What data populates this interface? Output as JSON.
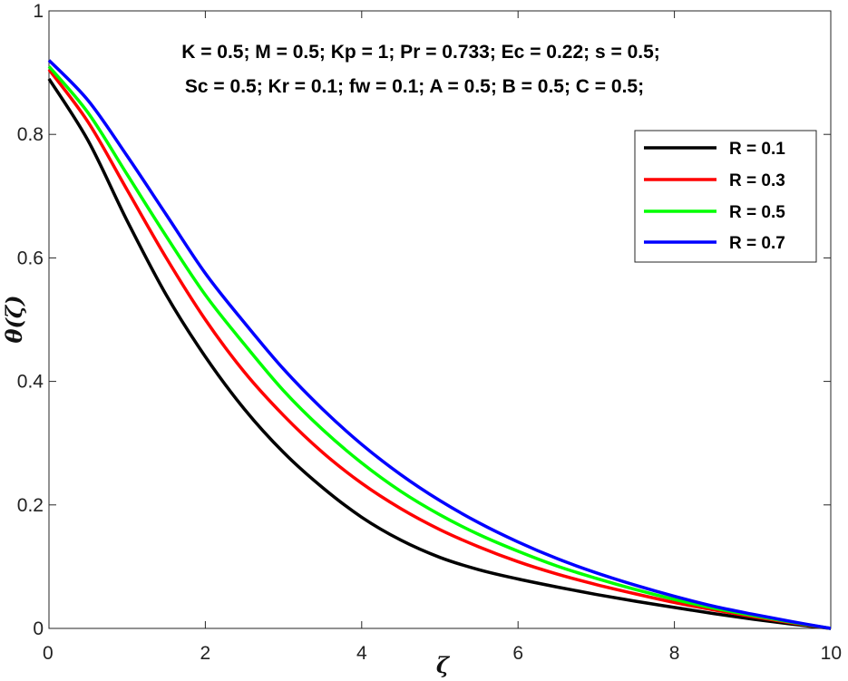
{
  "chart_data": {
    "type": "line",
    "title": "",
    "xlabel": "ζ",
    "ylabel": "θ(ζ)",
    "xlim": [
      0,
      10
    ],
    "ylim": [
      0,
      1
    ],
    "xticks": [
      0,
      2,
      4,
      6,
      8,
      10
    ],
    "yticks": [
      0,
      0.2,
      0.4,
      0.6,
      0.8,
      1
    ],
    "xtick_labels": [
      "0",
      "2",
      "4",
      "6",
      "8",
      "10"
    ],
    "ytick_labels": [
      "0",
      "0.2",
      "0.4",
      "0.6",
      "0.8",
      "1"
    ],
    "grid": false,
    "legend_position": "top-right",
    "annotations": [
      "K = 0.5; M = 0.5; Kp = 1; Pr = 0.733; Ec = 0.22; s = 0.5;",
      "Sc = 0.5; Kr = 0.1; fw = 0.1; A = 0.5; B = 0.5; C = 0.5;"
    ],
    "x": [
      0,
      0.5,
      1,
      1.5,
      2,
      2.5,
      3,
      3.5,
      4,
      4.5,
      5,
      5.5,
      6,
      6.5,
      7,
      7.5,
      8,
      8.5,
      9,
      9.5,
      10
    ],
    "series": [
      {
        "name": "R = 0.1",
        "color": "#000000",
        "values": [
          0.89,
          0.79,
          0.66,
          0.54,
          0.44,
          0.355,
          0.285,
          0.228,
          0.18,
          0.143,
          0.115,
          0.095,
          0.08,
          0.067,
          0.055,
          0.044,
          0.034,
          0.024,
          0.015,
          0.007,
          0.0
        ]
      },
      {
        "name": "R = 0.3",
        "color": "#ff0000",
        "values": [
          0.905,
          0.82,
          0.71,
          0.6,
          0.5,
          0.415,
          0.345,
          0.285,
          0.235,
          0.194,
          0.16,
          0.132,
          0.108,
          0.088,
          0.071,
          0.056,
          0.042,
          0.03,
          0.019,
          0.009,
          0.0
        ]
      },
      {
        "name": "R = 0.5",
        "color": "#00ff00",
        "values": [
          0.91,
          0.835,
          0.735,
          0.635,
          0.54,
          0.46,
          0.385,
          0.322,
          0.268,
          0.222,
          0.184,
          0.152,
          0.125,
          0.101,
          0.081,
          0.063,
          0.047,
          0.033,
          0.021,
          0.01,
          0.0
        ]
      },
      {
        "name": "R = 0.7",
        "color": "#0000ff",
        "values": [
          0.92,
          0.855,
          0.765,
          0.67,
          0.575,
          0.495,
          0.42,
          0.355,
          0.298,
          0.249,
          0.207,
          0.171,
          0.14,
          0.113,
          0.09,
          0.07,
          0.052,
          0.036,
          0.023,
          0.011,
          0.0
        ]
      }
    ]
  }
}
